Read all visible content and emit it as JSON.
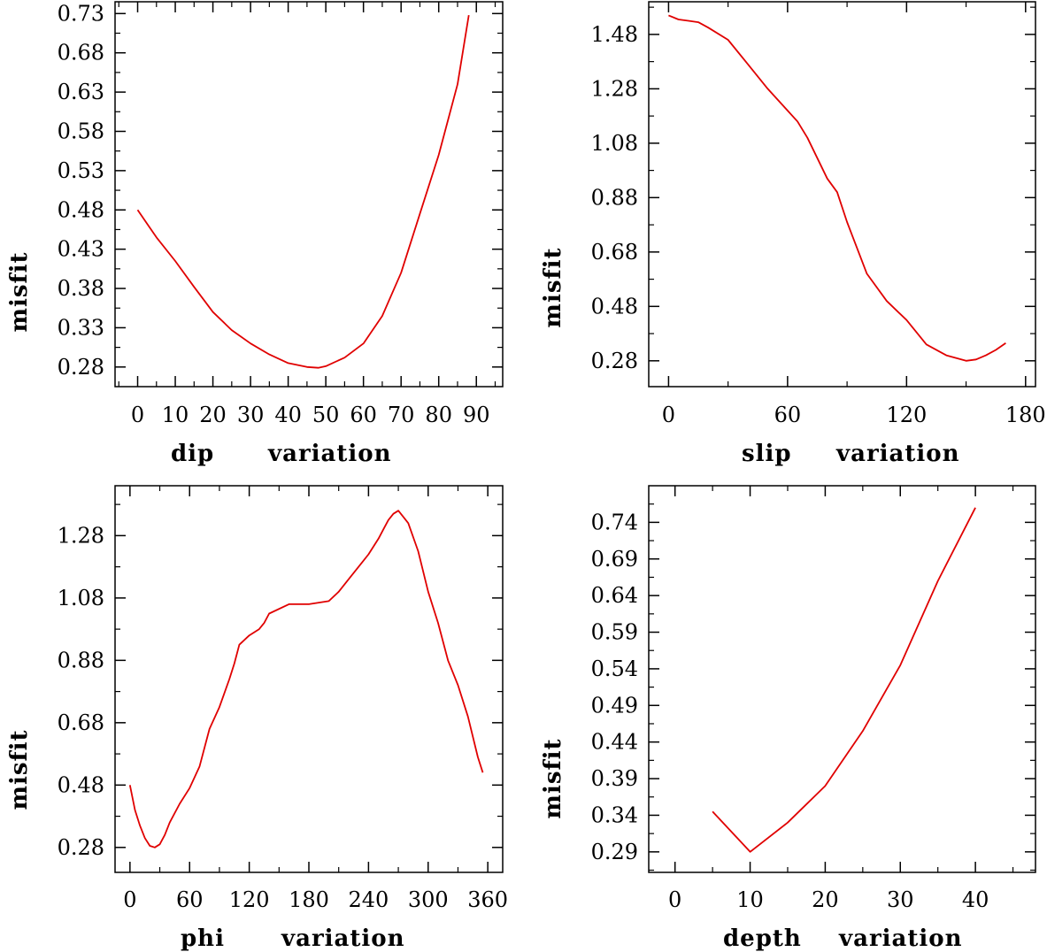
{
  "colors": {
    "line": "#e00000",
    "axis": "#000000",
    "background": "#ffffff"
  },
  "chart_data": [
    {
      "type": "line",
      "xlabel_left": "dip",
      "xlabel_right": "variation",
      "ylabel": "misfit",
      "xlim": [
        -6,
        97
      ],
      "ylim": [
        0.255,
        0.745
      ],
      "xticks": [
        0,
        10,
        20,
        30,
        40,
        50,
        60,
        70,
        80,
        90
      ],
      "xtick_labels": [
        "0",
        "10",
        "20",
        "30",
        "40",
        "50",
        "60",
        "70",
        "80",
        "90"
      ],
      "yticks": [
        0.28,
        0.33,
        0.38,
        0.43,
        0.48,
        0.53,
        0.58,
        0.63,
        0.68,
        0.73
      ],
      "ytick_labels": [
        "0.28",
        "0.33",
        "0.38",
        "0.43",
        "0.48",
        "0.53",
        "0.58",
        "0.63",
        "0.68",
        "0.73"
      ],
      "series": [
        {
          "name": "dip misfit",
          "x": [
            0,
            5,
            10,
            15,
            20,
            25,
            30,
            35,
            40,
            45,
            48,
            50,
            55,
            60,
            65,
            70,
            75,
            80,
            85,
            88
          ],
          "y": [
            0.48,
            0.445,
            0.415,
            0.382,
            0.35,
            0.327,
            0.31,
            0.296,
            0.285,
            0.28,
            0.279,
            0.281,
            0.292,
            0.31,
            0.345,
            0.4,
            0.475,
            0.55,
            0.64,
            0.728
          ]
        }
      ]
    },
    {
      "type": "line",
      "xlabel_left": "slip",
      "xlabel_right": "variation",
      "ylabel": "misfit",
      "xlim": [
        -10,
        185
      ],
      "ylim": [
        0.185,
        1.6
      ],
      "xticks": [
        0,
        60,
        120,
        180
      ],
      "xtick_labels": [
        "0",
        "60",
        "120",
        "180"
      ],
      "yticks": [
        0.28,
        0.48,
        0.68,
        0.88,
        1.08,
        1.28,
        1.48
      ],
      "ytick_labels": [
        "0.28",
        "0.48",
        "0.68",
        "0.88",
        "1.08",
        "1.28",
        "1.48"
      ],
      "series": [
        {
          "name": "slip misfit",
          "x": [
            0,
            5,
            10,
            15,
            20,
            30,
            40,
            50,
            60,
            65,
            70,
            80,
            85,
            90,
            100,
            110,
            120,
            130,
            140,
            150,
            155,
            160,
            165,
            170
          ],
          "y": [
            1.55,
            1.535,
            1.53,
            1.525,
            1.505,
            1.46,
            1.37,
            1.28,
            1.2,
            1.16,
            1.1,
            0.95,
            0.9,
            0.79,
            0.6,
            0.5,
            0.43,
            0.34,
            0.3,
            0.28,
            0.285,
            0.3,
            0.32,
            0.345
          ]
        }
      ]
    },
    {
      "type": "line",
      "xlabel_left": "phi",
      "xlabel_right": "variation",
      "ylabel": "misfit",
      "xlim": [
        -15,
        375
      ],
      "ylim": [
        0.2,
        1.44
      ],
      "xticks": [
        0,
        60,
        120,
        180,
        240,
        300,
        360
      ],
      "xtick_labels": [
        "0",
        "60",
        "120",
        "180",
        "240",
        "300",
        "360"
      ],
      "yticks": [
        0.28,
        0.48,
        0.68,
        0.88,
        1.08,
        1.28
      ],
      "ytick_labels": [
        "0.28",
        "0.48",
        "0.68",
        "0.88",
        "1.08",
        "1.28"
      ],
      "series": [
        {
          "name": "phi misfit",
          "x": [
            0,
            5,
            10,
            15,
            20,
            25,
            30,
            35,
            40,
            50,
            60,
            70,
            75,
            80,
            90,
            100,
            105,
            110,
            120,
            130,
            135,
            140,
            160,
            180,
            200,
            210,
            220,
            230,
            240,
            250,
            255,
            260,
            265,
            270,
            275,
            280,
            290,
            300,
            310,
            320,
            330,
            340,
            350,
            355
          ],
          "y": [
            0.48,
            0.4,
            0.35,
            0.31,
            0.285,
            0.28,
            0.29,
            0.32,
            0.36,
            0.42,
            0.47,
            0.54,
            0.6,
            0.66,
            0.73,
            0.82,
            0.87,
            0.93,
            0.96,
            0.98,
            1.0,
            1.03,
            1.06,
            1.06,
            1.07,
            1.1,
            1.14,
            1.18,
            1.22,
            1.27,
            1.3,
            1.33,
            1.35,
            1.36,
            1.34,
            1.32,
            1.23,
            1.1,
            1.0,
            0.88,
            0.8,
            0.7,
            0.57,
            0.52
          ]
        }
      ]
    },
    {
      "type": "line",
      "xlabel_left": "depth",
      "xlabel_right": "variation",
      "ylabel": "misfit",
      "xlim": [
        -3.5,
        48
      ],
      "ylim": [
        0.262,
        0.79
      ],
      "xticks": [
        0,
        10,
        20,
        30,
        40
      ],
      "xtick_labels": [
        "0",
        "10",
        "20",
        "30",
        "40"
      ],
      "yticks": [
        0.29,
        0.34,
        0.39,
        0.44,
        0.49,
        0.54,
        0.59,
        0.64,
        0.69,
        0.74
      ],
      "ytick_labels": [
        "0.29",
        "0.34",
        "0.39",
        "0.44",
        "0.49",
        "0.54",
        "0.59",
        "0.64",
        "0.69",
        "0.74"
      ],
      "series": [
        {
          "name": "depth misfit",
          "x": [
            5,
            10,
            15,
            20,
            25,
            30,
            35,
            40
          ],
          "y": [
            0.345,
            0.29,
            0.33,
            0.38,
            0.455,
            0.545,
            0.66,
            0.76
          ]
        }
      ]
    }
  ]
}
